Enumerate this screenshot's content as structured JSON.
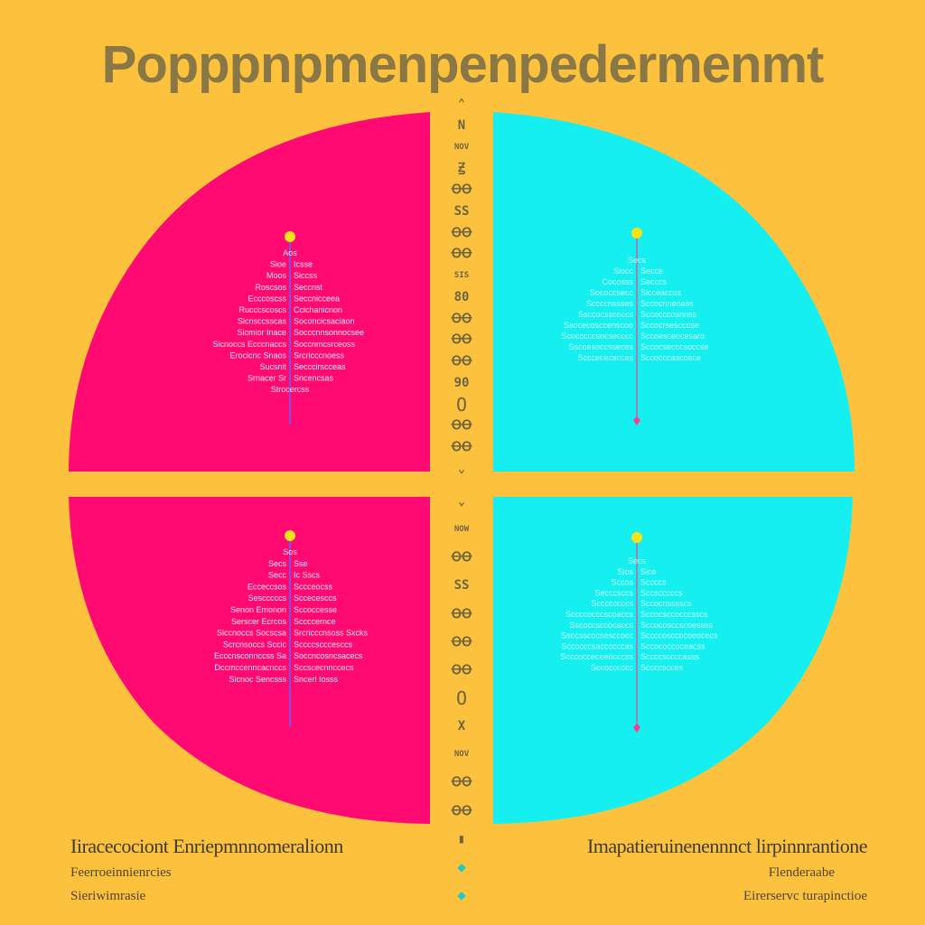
{
  "title": "Popppnpmenpenpedermenmt",
  "colors": {
    "background": "#fdc23d",
    "left_quadrants": "#ff0a73",
    "right_quadrants": "#16eff0",
    "divider": "#6f6440",
    "node_yellow": "#f5e21a",
    "stem_pink": "#ff3b8e",
    "stem_purple": "#8a4bd6"
  },
  "divider_glyphs_top": [
    "⌃",
    "N",
    "NOV",
    "Ꙃ",
    "ꝊꝊ",
    "SS",
    "ꝊꝊ",
    "ꝊꝊ",
    "SIS",
    "80",
    "ꝊꝊ",
    "ꝊꝊ",
    "ꝊꝊ",
    "90",
    "O",
    "ꝊꝊ",
    "ꝊꝊ",
    "⌄"
  ],
  "divider_glyphs_bottom": [
    "⌄",
    "NOW",
    "ꝊꝊ",
    "SS",
    "ꝊꝊ",
    "ꝊꝊ",
    "ꝊꝊ",
    "O",
    "X",
    "NOV",
    "ꝊꝊ",
    "ꝊꝊ",
    "▮",
    "◆",
    "◆"
  ],
  "quadrants": [
    {
      "side": "left",
      "lines": [
        [
          "Aos"
        ],
        [
          "Sioe",
          "Icsse"
        ],
        [
          "Moos",
          "Siccss"
        ],
        [
          "Roscsos",
          "Seccnst"
        ],
        [
          "Ecccoscss",
          "Seccnicceea"
        ],
        [
          "Rucccscoscs",
          "Ccichanicnon"
        ],
        [
          "Sicnsccsscas",
          "Soconcicsaciaon"
        ],
        [
          "Sicmior Inace",
          "Socccnnsonnocsee"
        ],
        [
          "Sicnoccs Ecccnaccs",
          "Soccnmcsrceoss"
        ],
        [
          "Erocicnc Snaos",
          "Srcricccnoess"
        ],
        [
          "Sucsnit",
          "Secccirscceas"
        ],
        [
          "Srnacer Sr",
          "Sncencsas"
        ],
        [
          "Strocercss"
        ]
      ]
    },
    {
      "side": "right",
      "lines": [
        [
          "Secs"
        ],
        [
          "Siocc",
          "Secce"
        ],
        [
          "Cocosss",
          "Secccs"
        ],
        [
          "Sococcsecc",
          "Sicceaccss"
        ],
        [
          "Sccccnssses",
          "Sccocnneoass"
        ],
        [
          "Ssccocsscoccs",
          "Sccocccosnnss"
        ],
        [
          "Ssocecosccenscoo",
          "Sccocrsesccose"
        ],
        [
          "Scocccccsocsecccc",
          "Sccoesceocesaro"
        ],
        [
          "Sscoesoccsseces",
          "Sccocsecccsoccse"
        ],
        [
          "Scccececscces",
          "Sccocccascoece"
        ]
      ]
    },
    {
      "side": "left",
      "lines": [
        [
          "Sos"
        ],
        [
          "Secs",
          "Sse"
        ],
        [
          "Secc",
          "Ic Sscs"
        ],
        [
          "Ecceccsos",
          "Sccceocss"
        ],
        [
          "Sescccccs",
          "Sccecesccs"
        ],
        [
          "Senon Emonon",
          "Sccoccesse"
        ],
        [
          "Serscer Ecrcos",
          "Sccccernce"
        ],
        [
          "Siccnoccs Socscsa",
          "Srcricccnsoss Sxcks"
        ],
        [
          "Scrcnsoccs Sccic",
          "Sccccscccesccs"
        ],
        [
          "Ecccnsconnccss Sa",
          "Soccncosncsacecs"
        ],
        [
          "Dccmccenncacnccs",
          "Sccscecnnccecs"
        ],
        [
          "Sicnoc Sencsss",
          "Sncerl Iosss"
        ]
      ]
    },
    {
      "side": "right",
      "lines": [
        [
          "Secs"
        ],
        [
          "Sios",
          "Sice"
        ],
        [
          "Sccos",
          "Sccccs"
        ],
        [
          "Secccsccs",
          "Sccscccccs"
        ],
        [
          "Sccccccccs",
          "Sccocnsssscs"
        ],
        [
          "Sccccocccscoaccs",
          "Sccocsccocccsscs"
        ],
        [
          "Sscoccsccocaccs",
          "Sccocosccscoessss"
        ],
        [
          "Ssocsscocsesccocc",
          "Sccccosccocoeocecs"
        ],
        [
          "Sccocccsaccccccas",
          "Sccococcoceacss"
        ],
        [
          "Scccocceceeocccss",
          "Sccccsccccasss"
        ],
        [
          "Sccocccccc",
          "Sccccscces"
        ]
      ]
    }
  ],
  "caption_left": "Iiracecociont Enriepmnnomeralionn",
  "caption_right": "Imapatieruinenennnct lirpinnrantione",
  "sub_left_1": "Feerroeinnienrcies",
  "sub_left_2": "Sieriwimrasie",
  "sub_right_1": "Flenderaabe",
  "sub_right_2": "Eirerservc turapinctioe"
}
